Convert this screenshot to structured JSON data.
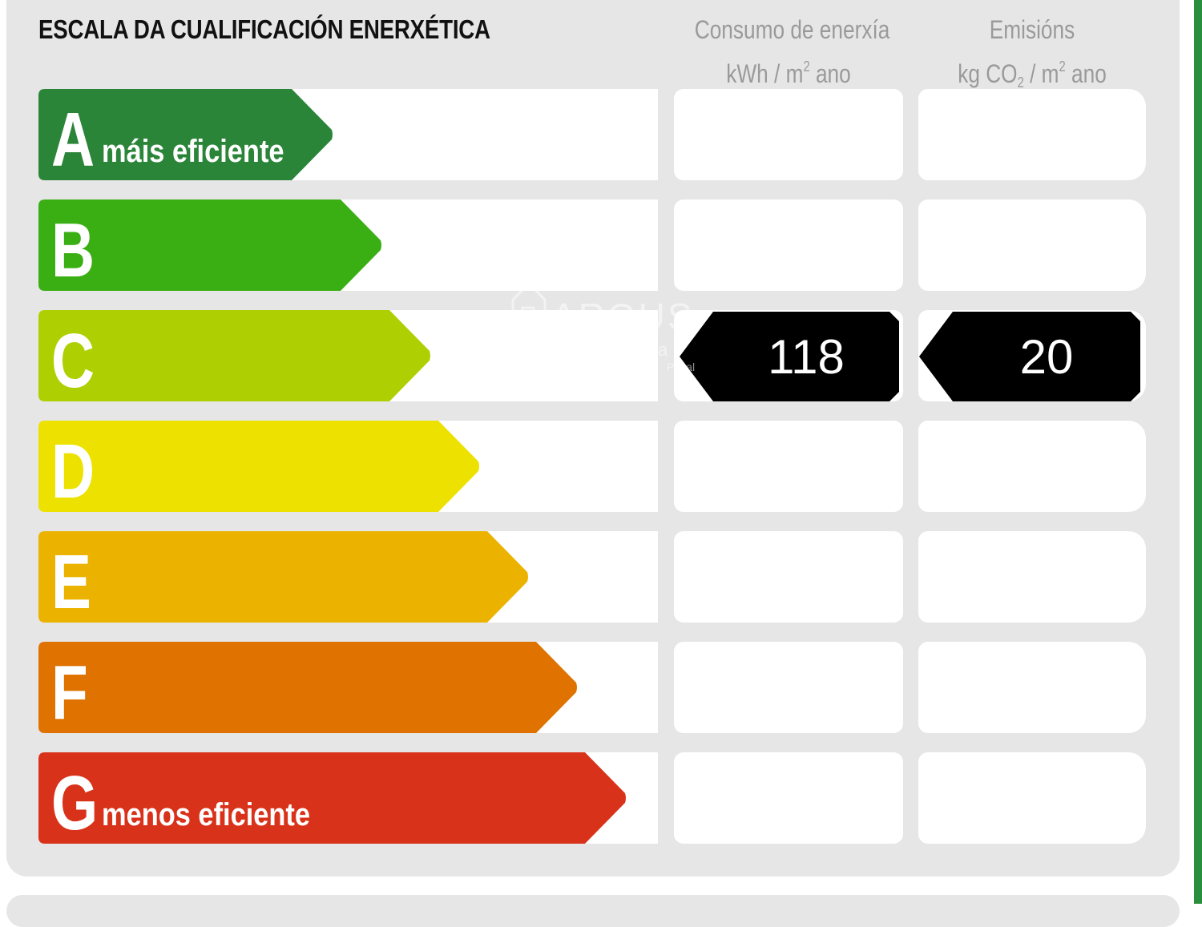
{
  "title": "ESCALA DA CUALIFICACIÓN ENERXÉTICA",
  "columns": {
    "consumption": {
      "line1": "Consumo de enerxía",
      "unit_a": "kWh / m",
      "unit_sup": "2",
      "unit_b": " ano"
    },
    "emissions": {
      "line1": "Emisións",
      "unit_a": "kg CO",
      "unit_sub": "2",
      "unit_mid": " / m",
      "unit_sup": "2",
      "unit_b": " ano"
    }
  },
  "classes": [
    {
      "letter": "A",
      "label": "máis eficiente",
      "color": "#2b8539"
    },
    {
      "letter": "B",
      "label": "",
      "color": "#3aaf13"
    },
    {
      "letter": "C",
      "label": "",
      "color": "#aed003"
    },
    {
      "letter": "D",
      "label": "",
      "color": "#ede100"
    },
    {
      "letter": "E",
      "label": "",
      "color": "#ebb300"
    },
    {
      "letter": "F",
      "label": "",
      "color": "#e07200"
    },
    {
      "letter": "G",
      "label": "menos eficiente",
      "color": "#d9321a"
    }
  ],
  "rating": {
    "class": "C",
    "consumption_value": "118",
    "emissions_value": "20",
    "indicator_color": "#000000"
  },
  "watermark": {
    "brand": "ARQUS",
    "line2": "inmobiliaria",
    "line3": "Ourense · Pazal"
  }
}
